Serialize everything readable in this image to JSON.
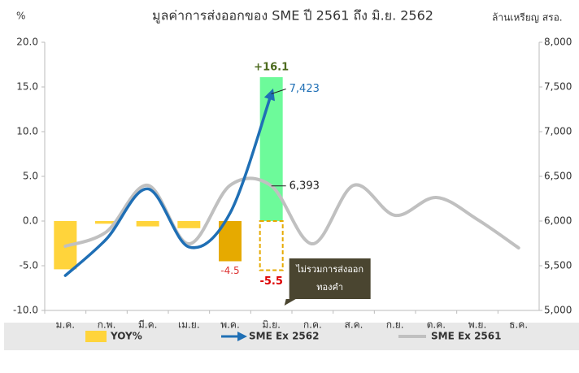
{
  "chart_data": {
    "type": "bar_line",
    "title": "มูลค่าการส่งออกของ SME ปี 2561 ถึง มิ.ย. 2562",
    "y_label": "%",
    "y2_label": "ล้านเหรียญ สรอ.",
    "categories": [
      "ม.ค.",
      "ก.พ.",
      "มี.ค.",
      "เม.ย.",
      "พ.ค.",
      "มิ.ย.",
      "ก.ค.",
      "ส.ค.",
      "ก.ย.",
      "ต.ค.",
      "พ.ย.",
      "ธ.ค."
    ],
    "ylim": [
      -10,
      20
    ],
    "yticks": [
      {
        "value": 20,
        "label": "20.0"
      },
      {
        "value": 15,
        "label": "15.0"
      },
      {
        "value": 10,
        "label": "10.0"
      },
      {
        "value": 5,
        "label": "5.0"
      },
      {
        "value": 0,
        "label": "0.0"
      },
      {
        "value": -5,
        "label": "-5.0"
      },
      {
        "value": -10,
        "label": "-10.0"
      }
    ],
    "y2lim": [
      5000,
      8000
    ],
    "y2ticks": [
      {
        "value": 8000,
        "label": "8,000"
      },
      {
        "value": 7500,
        "label": "7,500"
      },
      {
        "value": 7000,
        "label": "7,000"
      },
      {
        "value": 6500,
        "label": "6,500"
      },
      {
        "value": 6000,
        "label": "6,000"
      },
      {
        "value": 5500,
        "label": "5,500"
      },
      {
        "value": 5000,
        "label": "5,000"
      }
    ],
    "series": [
      {
        "name": "YOY%",
        "type": "bar",
        "color": "#ffd43b",
        "colors": [
          "#ffd43b",
          "#ffd43b",
          "#ffd43b",
          "#ffd43b",
          "#e6aa00",
          "#6dfa9a",
          null,
          null,
          null,
          null,
          null,
          null
        ],
        "values": [
          -5.4,
          -0.3,
          -0.6,
          -0.8,
          -4.5,
          16.1,
          null,
          null,
          null,
          null,
          null,
          null
        ],
        "value_labels": [
          null,
          null,
          null,
          null,
          "-4.5",
          "+16.1",
          null,
          null,
          null,
          null,
          null,
          null
        ]
      },
      {
        "name": "SME Ex 2562",
        "type": "line",
        "axis": "y2",
        "color": "#1f6fb5",
        "values": [
          5390,
          5800,
          6360,
          5710,
          6090,
          7423,
          null,
          null,
          null,
          null,
          null,
          null
        ],
        "value_labels": [
          null,
          null,
          null,
          null,
          null,
          "7,423",
          null,
          null,
          null,
          null,
          null,
          null
        ]
      },
      {
        "name": "SME Ex 2561",
        "type": "line",
        "axis": "y2",
        "color": "#c0c0c0",
        "values": [
          5718,
          5880,
          6400,
          5745,
          6400,
          6393,
          5745,
          6400,
          6064,
          6264,
          6018,
          5700
        ],
        "value_labels": [
          null,
          null,
          null,
          null,
          null,
          "6,393",
          null,
          null,
          null,
          null,
          null,
          null
        ]
      }
    ],
    "annotation": {
      "lines": [
        "ไม่รวมการส่งออก",
        "ทองคำ"
      ],
      "category": "มิ.ย.",
      "value": -5.5,
      "label": "-5.5"
    }
  }
}
